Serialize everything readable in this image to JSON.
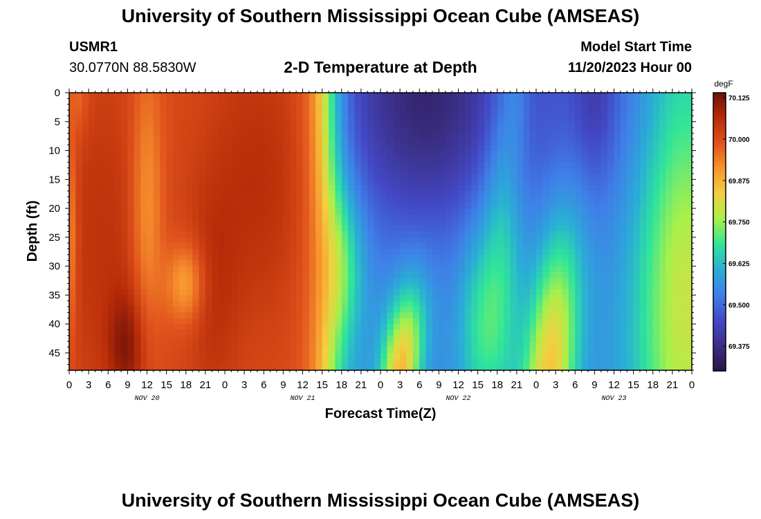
{
  "title": "University of Southern Mississippi Ocean Cube (AMSEAS)",
  "footer_title": "University of Southern Mississippi Ocean Cube (AMSEAS)",
  "station": {
    "id": "USMR1",
    "coords": "30.0770N  88.5830W"
  },
  "model": {
    "label": "Model Start Time",
    "start": "11/20/2023 Hour 00"
  },
  "chart_data": {
    "type": "heatmap",
    "title": "2-D Temperature at Depth",
    "xlabel": "Forecast Time(Z)",
    "ylabel": "Depth (ft)",
    "x_range_hours": [
      0,
      96
    ],
    "ylim": [
      0,
      48
    ],
    "y_ticks": [
      0,
      5,
      10,
      15,
      20,
      25,
      30,
      35,
      40,
      45
    ],
    "x_tick_labels": [
      "0",
      "3",
      "6",
      "9",
      "12",
      "15",
      "18",
      "21",
      "0",
      "3",
      "6",
      "9",
      "12",
      "15",
      "18",
      "21",
      "0",
      "3",
      "6",
      "9",
      "12",
      "15",
      "18",
      "21",
      "0",
      "3",
      "6",
      "9",
      "12",
      "15",
      "18",
      "21",
      "0"
    ],
    "day_labels": [
      {
        "label": "NOV 20",
        "hour": 12
      },
      {
        "label": "NOV 21",
        "hour": 36
      },
      {
        "label": "NOV 22",
        "hour": 60
      },
      {
        "label": "NOV 23",
        "hour": 84
      }
    ],
    "colorbar": {
      "units": "degF",
      "min": 69.3,
      "max": 70.14,
      "tick_labels": [
        "70.125",
        "70.000",
        "69.875",
        "69.750",
        "69.625",
        "69.500",
        "69.375"
      ],
      "colors": [
        "#2a1448",
        "#3b2f86",
        "#4348c5",
        "#3f7fe8",
        "#2aaed6",
        "#2fe59a",
        "#a8f04a",
        "#f2d040",
        "#f8962e",
        "#e0521c",
        "#b82c08",
        "#6e1008"
      ]
    },
    "value_summary": {
      "nov20_00_to_nov21_14": "warm, about 69.95 to 70.12 degF; warmest near 8Z Nov 20 at 40-48 ft",
      "nov21_16_to_nov22_12_surface": "cold, about 69.30 to 69.45 degF near surface at 05Z Nov 22",
      "nov22_bottom_wedge": "about 69.85 to 69.90 degF near 3Z Nov 22 at 35-48 ft",
      "nov23_00_to_nov23_12_bottom": "about 69.85 to 69.90 degF near 2Z Nov 23 at 25-48 ft",
      "nov23_09_surface": "about 69.35 degF",
      "nov23_end": "about 69.75 to 69.85 degF"
    }
  }
}
